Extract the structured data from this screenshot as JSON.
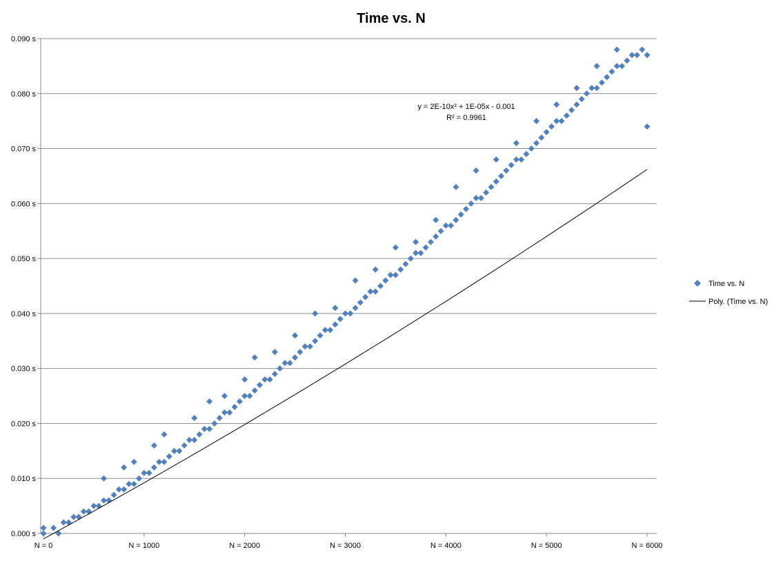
{
  "chart_data": {
    "type": "scatter",
    "title": "Time vs. N",
    "xlabel": "",
    "ylabel": "",
    "xlim": [
      0,
      6000
    ],
    "ylim": [
      0.0,
      0.09
    ],
    "x_tick_values": [
      0,
      1000,
      2000,
      3000,
      4000,
      5000,
      6000
    ],
    "x_tick_labels": [
      "N = 0",
      "N = 1000",
      "N = 2000",
      "N = 3000",
      "N = 4000",
      "N = 5000",
      "N = 6000"
    ],
    "y_tick_values": [
      0.0,
      0.01,
      0.02,
      0.03,
      0.04,
      0.05,
      0.06,
      0.07,
      0.08,
      0.09
    ],
    "y_tick_labels": [
      "0.000 s",
      "0.010 s",
      "0.020 s",
      "0.030 s",
      "0.040 s",
      "0.050 s",
      "0.060 s",
      "0.070 s",
      "0.080 s",
      "0.090 s"
    ],
    "grid": "horizontal",
    "legend_position": "right",
    "series": [
      {
        "name": "Time vs. N",
        "kind": "scatter",
        "marker": "diamond",
        "color": "#4f81bd",
        "points": [
          [
            0,
            0.0
          ],
          [
            0,
            0.001
          ],
          [
            100,
            0.001
          ],
          [
            150,
            0.0
          ],
          [
            200,
            0.002
          ],
          [
            250,
            0.002
          ],
          [
            300,
            0.003
          ],
          [
            350,
            0.003
          ],
          [
            400,
            0.004
          ],
          [
            450,
            0.004
          ],
          [
            500,
            0.005
          ],
          [
            550,
            0.005
          ],
          [
            600,
            0.006
          ],
          [
            600,
            0.01
          ],
          [
            650,
            0.006
          ],
          [
            700,
            0.007
          ],
          [
            750,
            0.008
          ],
          [
            800,
            0.008
          ],
          [
            800,
            0.012
          ],
          [
            850,
            0.009
          ],
          [
            900,
            0.009
          ],
          [
            900,
            0.013
          ],
          [
            950,
            0.01
          ],
          [
            1000,
            0.011
          ],
          [
            1050,
            0.011
          ],
          [
            1100,
            0.012
          ],
          [
            1100,
            0.016
          ],
          [
            1150,
            0.013
          ],
          [
            1200,
            0.013
          ],
          [
            1200,
            0.018
          ],
          [
            1250,
            0.014
          ],
          [
            1300,
            0.015
          ],
          [
            1350,
            0.015
          ],
          [
            1400,
            0.016
          ],
          [
            1450,
            0.017
          ],
          [
            1500,
            0.017
          ],
          [
            1500,
            0.021
          ],
          [
            1550,
            0.018
          ],
          [
            1600,
            0.019
          ],
          [
            1650,
            0.019
          ],
          [
            1650,
            0.024
          ],
          [
            1700,
            0.02
          ],
          [
            1750,
            0.021
          ],
          [
            1800,
            0.022
          ],
          [
            1800,
            0.025
          ],
          [
            1850,
            0.022
          ],
          [
            1900,
            0.023
          ],
          [
            1950,
            0.024
          ],
          [
            2000,
            0.025
          ],
          [
            2000,
            0.028
          ],
          [
            2050,
            0.025
          ],
          [
            2100,
            0.026
          ],
          [
            2100,
            0.032
          ],
          [
            2150,
            0.027
          ],
          [
            2200,
            0.028
          ],
          [
            2250,
            0.028
          ],
          [
            2300,
            0.029
          ],
          [
            2300,
            0.033
          ],
          [
            2350,
            0.03
          ],
          [
            2400,
            0.031
          ],
          [
            2450,
            0.031
          ],
          [
            2500,
            0.032
          ],
          [
            2500,
            0.036
          ],
          [
            2550,
            0.033
          ],
          [
            2600,
            0.034
          ],
          [
            2650,
            0.034
          ],
          [
            2700,
            0.035
          ],
          [
            2700,
            0.04
          ],
          [
            2750,
            0.036
          ],
          [
            2800,
            0.037
          ],
          [
            2850,
            0.037
          ],
          [
            2900,
            0.038
          ],
          [
            2900,
            0.041
          ],
          [
            2950,
            0.039
          ],
          [
            3000,
            0.04
          ],
          [
            3050,
            0.04
          ],
          [
            3100,
            0.041
          ],
          [
            3100,
            0.046
          ],
          [
            3150,
            0.042
          ],
          [
            3200,
            0.043
          ],
          [
            3250,
            0.044
          ],
          [
            3300,
            0.044
          ],
          [
            3300,
            0.048
          ],
          [
            3350,
            0.045
          ],
          [
            3400,
            0.046
          ],
          [
            3450,
            0.047
          ],
          [
            3500,
            0.047
          ],
          [
            3500,
            0.052
          ],
          [
            3550,
            0.048
          ],
          [
            3600,
            0.049
          ],
          [
            3650,
            0.05
          ],
          [
            3700,
            0.051
          ],
          [
            3700,
            0.053
          ],
          [
            3750,
            0.051
          ],
          [
            3800,
            0.052
          ],
          [
            3850,
            0.053
          ],
          [
            3900,
            0.054
          ],
          [
            3900,
            0.057
          ],
          [
            3950,
            0.055
          ],
          [
            4000,
            0.056
          ],
          [
            4050,
            0.056
          ],
          [
            4100,
            0.057
          ],
          [
            4100,
            0.063
          ],
          [
            4150,
            0.058
          ],
          [
            4200,
            0.059
          ],
          [
            4250,
            0.06
          ],
          [
            4300,
            0.061
          ],
          [
            4300,
            0.066
          ],
          [
            4350,
            0.061
          ],
          [
            4400,
            0.062
          ],
          [
            4450,
            0.063
          ],
          [
            4500,
            0.064
          ],
          [
            4500,
            0.068
          ],
          [
            4550,
            0.065
          ],
          [
            4600,
            0.066
          ],
          [
            4650,
            0.067
          ],
          [
            4700,
            0.068
          ],
          [
            4700,
            0.071
          ],
          [
            4750,
            0.068
          ],
          [
            4800,
            0.069
          ],
          [
            4850,
            0.07
          ],
          [
            4900,
            0.071
          ],
          [
            4900,
            0.075
          ],
          [
            4950,
            0.072
          ],
          [
            5000,
            0.073
          ],
          [
            5050,
            0.074
          ],
          [
            5100,
            0.075
          ],
          [
            5100,
            0.078
          ],
          [
            5150,
            0.075
          ],
          [
            5200,
            0.076
          ],
          [
            5250,
            0.077
          ],
          [
            5300,
            0.078
          ],
          [
            5300,
            0.081
          ],
          [
            5350,
            0.079
          ],
          [
            5400,
            0.08
          ],
          [
            5450,
            0.081
          ],
          [
            5500,
            0.081
          ],
          [
            5500,
            0.085
          ],
          [
            5550,
            0.082
          ],
          [
            5600,
            0.083
          ],
          [
            5650,
            0.084
          ],
          [
            5700,
            0.085
          ],
          [
            5700,
            0.088
          ],
          [
            5750,
            0.085
          ],
          [
            5800,
            0.086
          ],
          [
            5850,
            0.087
          ],
          [
            5900,
            0.087
          ],
          [
            5950,
            0.088
          ],
          [
            6000,
            0.087
          ],
          [
            6000,
            0.074
          ]
        ]
      },
      {
        "name": "Poly. (Time vs. N)",
        "kind": "trendline",
        "color": "#000000",
        "points": [
          [
            0,
            -0.001
          ],
          [
            500,
            0.00405
          ],
          [
            1000,
            0.0092
          ],
          [
            1500,
            0.01445
          ],
          [
            2000,
            0.0198
          ],
          [
            2500,
            0.02525
          ],
          [
            3000,
            0.0308
          ],
          [
            3500,
            0.03645
          ],
          [
            4000,
            0.0422
          ],
          [
            4500,
            0.04805
          ],
          [
            5000,
            0.054
          ],
          [
            5500,
            0.06005
          ],
          [
            6000,
            0.0662
          ]
        ]
      }
    ],
    "annotations": [
      "y = 2E-10x² + 1E-05x - 0.001",
      "R² = 0.9961"
    ]
  }
}
